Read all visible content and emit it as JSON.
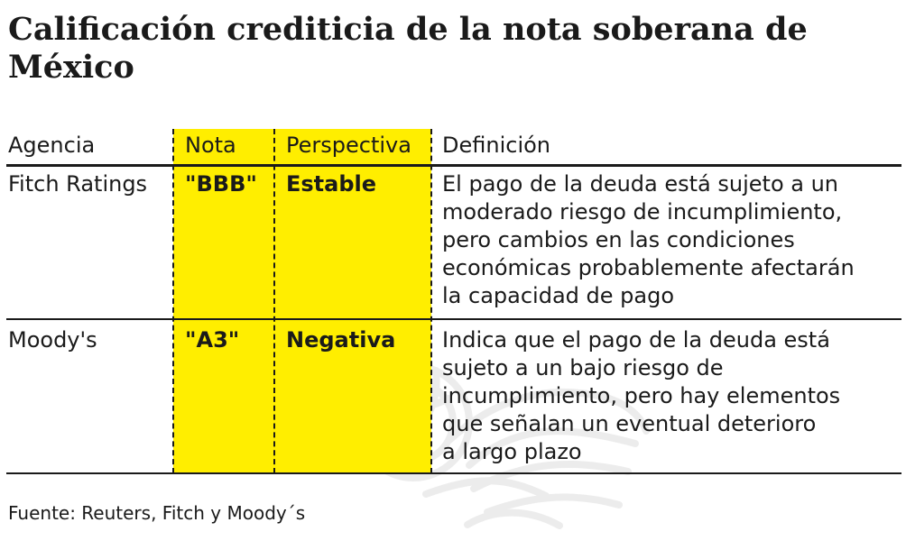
{
  "title": "Calificación crediticia de la nota soberana de México",
  "table": {
    "headers": [
      "Agencia",
      "Nota",
      "Perspectiva",
      "Definición"
    ],
    "rows": [
      {
        "agencia": "Fitch Ratings",
        "nota": "\"BBB\"",
        "perspectiva": "Estable",
        "definicion": [
          "El pago de la deuda está sujeto a un",
          "moderado riesgo de incumplimiento,",
          "pero cambios en las condiciones",
          "económicas probablemente afectarán",
          "la capacidad de pago"
        ]
      },
      {
        "agencia": "Moody's",
        "nota": "\"A3\"",
        "perspectiva": "Negativa",
        "definicion": [
          "Indica que el pago de la deuda está",
          "sujeto a un bajo riesgo de",
          "incumplimiento, pero hay elementos",
          "que señalan un eventual deterioro",
          "a largo plazo"
        ]
      }
    ]
  },
  "source": "Fuente: Reuters, Fitch y Moody´s",
  "colors": {
    "highlight": "#ffee00",
    "text": "#1a1a1a",
    "background": "#ffffff"
  },
  "icons": {
    "watermark": "eagle-seal-icon"
  }
}
